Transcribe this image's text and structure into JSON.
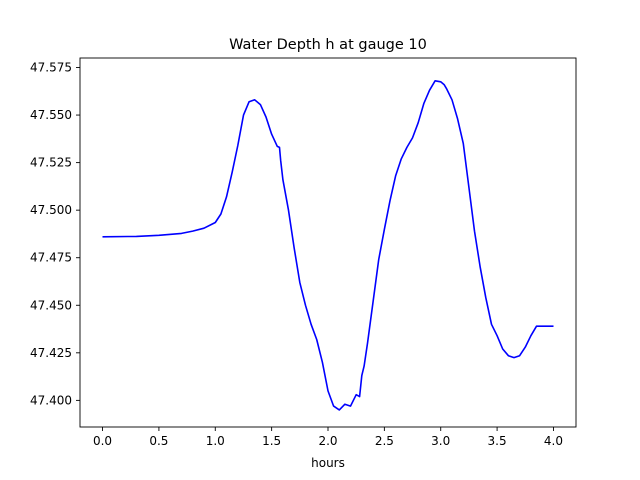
{
  "chart_data": {
    "type": "line",
    "title": "Water Depth h at gauge 10",
    "xlabel": "hours",
    "ylabel": "",
    "xlim": [
      -0.2,
      4.2
    ],
    "ylim": [
      47.386,
      47.58
    ],
    "xticks": [
      0.0,
      0.5,
      1.0,
      1.5,
      2.0,
      2.5,
      3.0,
      3.5,
      4.0
    ],
    "xtick_labels": [
      "0.0",
      "0.5",
      "1.0",
      "1.5",
      "2.0",
      "2.5",
      "3.0",
      "3.5",
      "4.0"
    ],
    "yticks": [
      47.4,
      47.425,
      47.45,
      47.475,
      47.5,
      47.525,
      47.55,
      47.575
    ],
    "ytick_labels": [
      "47.400",
      "47.425",
      "47.450",
      "47.475",
      "47.500",
      "47.525",
      "47.550",
      "47.575"
    ],
    "grid": false,
    "series": [
      {
        "color": "#0000ff",
        "x": [
          0.0,
          0.3,
          0.5,
          0.7,
          0.8,
          0.9,
          1.0,
          1.05,
          1.1,
          1.15,
          1.2,
          1.25,
          1.3,
          1.35,
          1.4,
          1.45,
          1.5,
          1.55,
          1.57,
          1.58,
          1.6,
          1.65,
          1.7,
          1.75,
          1.8,
          1.85,
          1.9,
          1.95,
          2.0,
          2.05,
          2.1,
          2.15,
          2.2,
          2.25,
          2.28,
          2.3,
          2.32,
          2.35,
          2.4,
          2.45,
          2.5,
          2.55,
          2.6,
          2.65,
          2.7,
          2.75,
          2.8,
          2.85,
          2.9,
          2.95,
          3.0,
          3.03,
          3.05,
          3.1,
          3.15,
          3.2,
          3.25,
          3.3,
          3.35,
          3.4,
          3.45,
          3.5,
          3.55,
          3.6,
          3.65,
          3.7,
          3.75,
          3.8,
          3.85,
          3.9,
          3.95,
          4.0
        ],
        "values": [
          47.486,
          47.4862,
          47.4868,
          47.4878,
          47.489,
          47.4905,
          47.4935,
          47.498,
          47.507,
          47.52,
          47.534,
          47.55,
          47.557,
          47.558,
          47.5555,
          47.549,
          47.54,
          47.5335,
          47.533,
          47.526,
          47.516,
          47.5,
          47.48,
          47.462,
          47.45,
          47.44,
          47.432,
          47.42,
          47.405,
          47.397,
          47.395,
          47.398,
          47.397,
          47.403,
          47.402,
          47.413,
          47.418,
          47.43,
          47.452,
          47.474,
          47.49,
          47.505,
          47.518,
          47.527,
          47.533,
          47.538,
          47.546,
          47.556,
          47.563,
          47.568,
          47.5675,
          47.566,
          47.564,
          47.558,
          47.548,
          47.535,
          47.512,
          47.489,
          47.47,
          47.454,
          47.44,
          47.434,
          47.427,
          47.4235,
          47.4225,
          47.4235,
          47.428,
          47.434,
          47.439,
          47.439,
          47.439,
          47.439
        ]
      }
    ]
  }
}
